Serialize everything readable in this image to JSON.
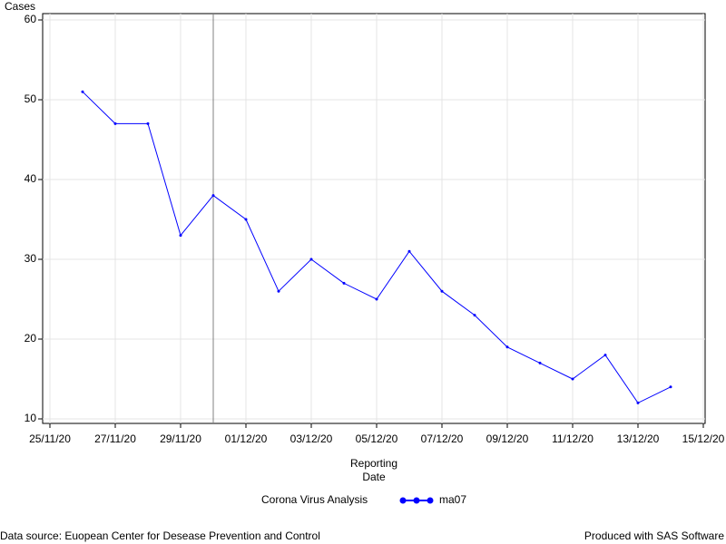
{
  "chart_data": {
    "type": "line",
    "y_label": "Cases",
    "x_label": "Reporting Date",
    "x": [
      "26/11/20",
      "27/11/20",
      "28/11/20",
      "29/11/20",
      "30/11/20",
      "01/12/20",
      "02/12/20",
      "03/12/20",
      "04/12/20",
      "05/12/20",
      "06/12/20",
      "07/12/20",
      "08/12/20",
      "09/12/20",
      "10/12/20",
      "11/12/20",
      "12/12/20",
      "13/12/20",
      "14/12/20"
    ],
    "series": [
      {
        "name": "ma07",
        "color": "#0000ff",
        "values": [
          51,
          47,
          47,
          33,
          38,
          35,
          26,
          30,
          27,
          25,
          31,
          26,
          23,
          19,
          17,
          15,
          18,
          12,
          14
        ]
      }
    ],
    "xlim": [
      "25/11/20",
      "15/12/20"
    ],
    "xticks": [
      "25/11/20",
      "27/11/20",
      "29/11/20",
      "01/12/20",
      "03/12/20",
      "05/12/20",
      "07/12/20",
      "09/12/20",
      "11/12/20",
      "13/12/20",
      "15/12/20"
    ],
    "ylim": [
      10,
      60
    ],
    "yticks": [
      10,
      20,
      30,
      40,
      50,
      60
    ],
    "grid": true,
    "reference_line_x": "30/11/20",
    "legend_title": "Corona Virus Analysis",
    "footnote_left": "Data source: Euopean Center for Desease Prevention and Control",
    "footnote_right": "Produced with SAS Software"
  }
}
